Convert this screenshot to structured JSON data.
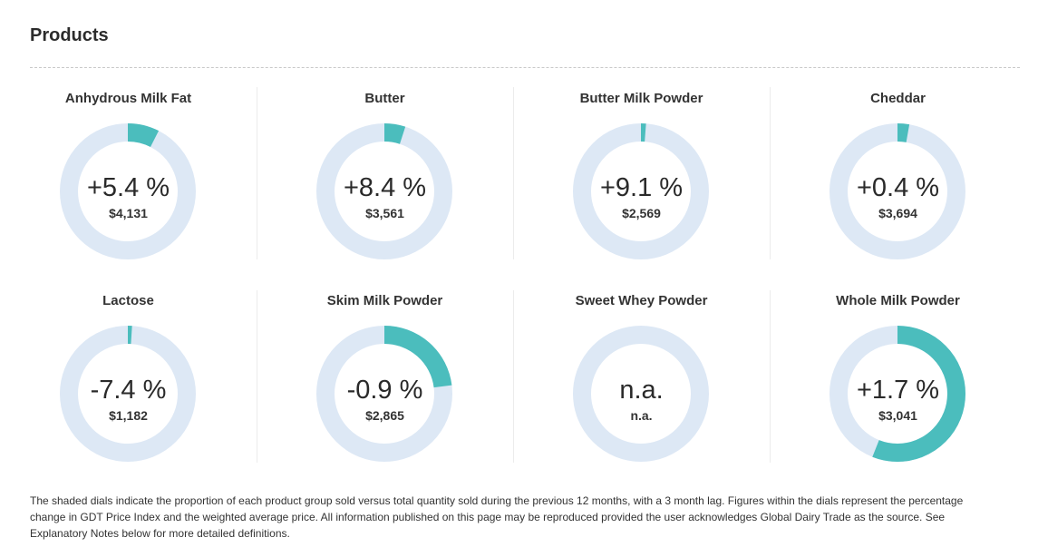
{
  "page": {
    "title": "Products",
    "footnote": "The shaded dials indicate the proportion of each product group sold versus total quantity sold during the previous 12 months, with a 3 month lag. Figures within the dials represent the percentage change in GDT Price Index and the weighted average price. All information published on this page may be reproduced provided the user acknowledges Global Dairy Trade as the source. See Explanatory Notes below for more detailed definitions."
  },
  "colors": {
    "ring_track": "#dde8f5",
    "ring_fill": "#4bbdbd"
  },
  "chart_data": {
    "type": "pie",
    "note": "",
    "products": [
      {
        "name": "Anhydrous Milk Fat",
        "change": "+5.4 %",
        "price": "$4,131",
        "share": 0.075
      },
      {
        "name": "Butter",
        "change": "+8.4 %",
        "price": "$3,561",
        "share": 0.05
      },
      {
        "name": "Butter Milk Powder",
        "change": "+9.1 %",
        "price": "$2,569",
        "share": 0.012
      },
      {
        "name": "Cheddar",
        "change": "+0.4 %",
        "price": "$3,694",
        "share": 0.028
      },
      {
        "name": "Lactose",
        "change": "-7.4 %",
        "price": "$1,182",
        "share": 0.01
      },
      {
        "name": "Skim Milk Powder",
        "change": "-0.9 %",
        "price": "$2,865",
        "share": 0.23
      },
      {
        "name": "Sweet Whey Powder",
        "change": "n.a.",
        "price": "n.a.",
        "share": 0
      },
      {
        "name": "Whole Milk Powder",
        "change": "+1.7 %",
        "price": "$3,041",
        "share": 0.56
      }
    ]
  }
}
